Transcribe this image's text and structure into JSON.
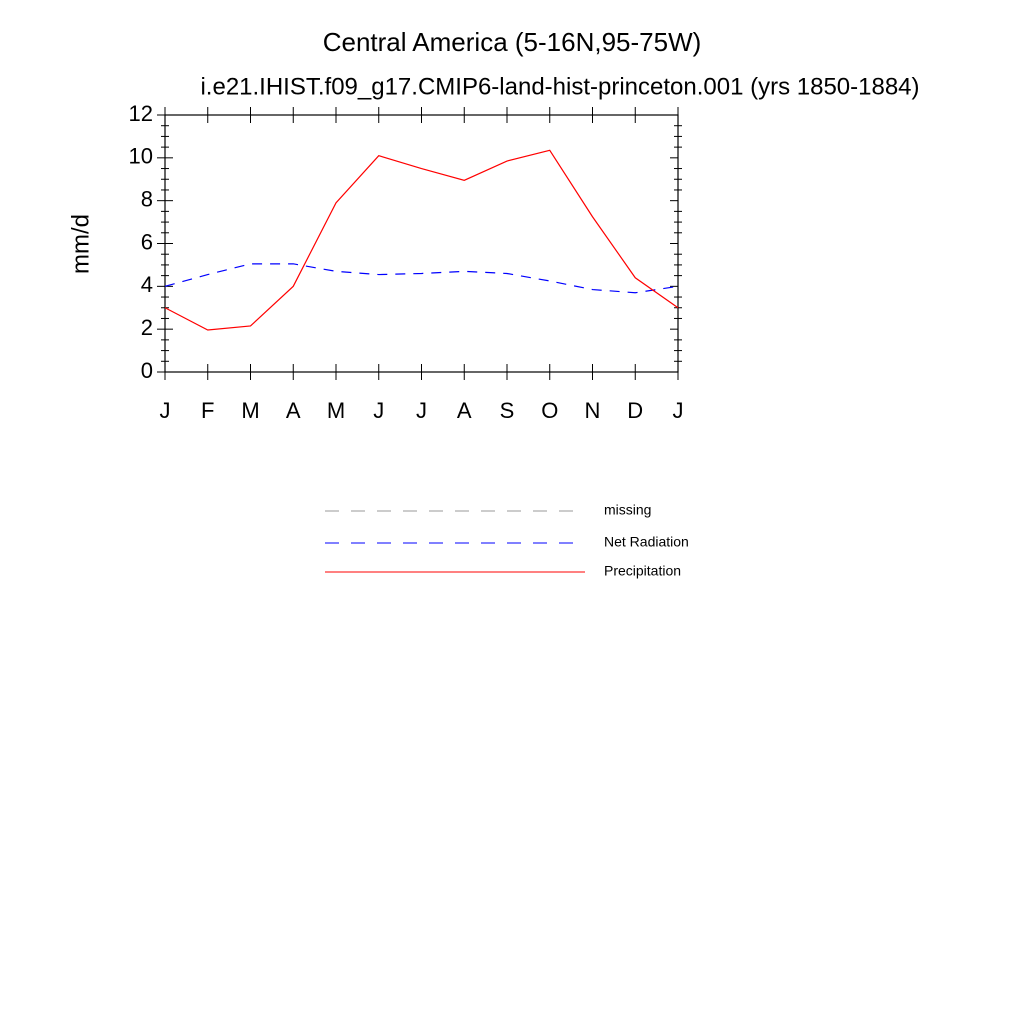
{
  "chart_data": {
    "type": "line",
    "title": "Central America (5-16N,95-75W)",
    "subtitle": "i.e21.IHIST.f09_g17.CMIP6-land-hist-princeton.001 (yrs 1850-1884)",
    "y_label": "mm/d",
    "categories": [
      "J",
      "F",
      "M",
      "A",
      "M",
      "J",
      "J",
      "A",
      "S",
      "O",
      "N",
      "D",
      "J"
    ],
    "series": [
      {
        "name": "missing",
        "color": "#999999",
        "dash": true,
        "values": [
          null,
          null,
          null,
          null,
          null,
          null,
          null,
          null,
          null,
          null,
          null,
          null,
          null
        ]
      },
      {
        "name": "Net Radiation",
        "color": "#0000ff",
        "dash": true,
        "values": [
          4.0,
          4.55,
          5.05,
          5.05,
          4.7,
          4.55,
          4.6,
          4.7,
          4.6,
          4.25,
          3.85,
          3.7,
          4.0
        ]
      },
      {
        "name": "Precipitation",
        "color": "#ff0000",
        "dash": false,
        "values": [
          3.0,
          1.96,
          2.15,
          4.0,
          7.9,
          10.1,
          9.5,
          8.95,
          9.85,
          10.35,
          7.25,
          4.4,
          3.0
        ]
      }
    ],
    "ylim": [
      0,
      12
    ],
    "yticks": [
      0,
      2,
      4,
      6,
      8,
      10,
      12
    ],
    "minor_ticks_per_major": 3,
    "grid": false
  }
}
